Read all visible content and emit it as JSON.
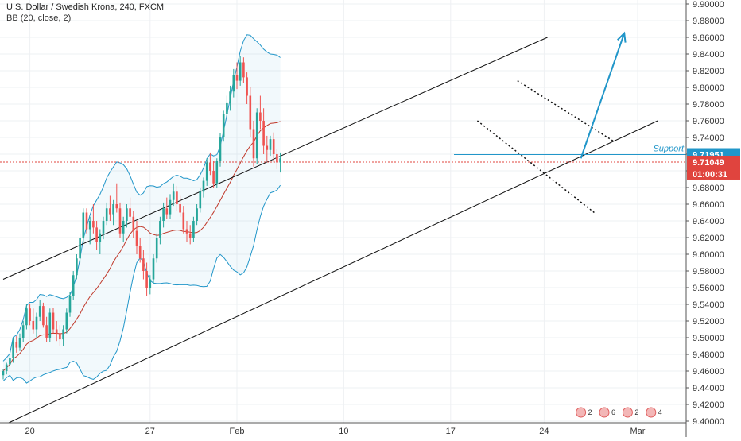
{
  "header": {
    "title": "U.S. Dollar / Swedish Krona, 240, FXCM",
    "indicator": "BB (20, close, 2)"
  },
  "chart_data": {
    "type": "candlestick",
    "ylim": [
      9.4,
      9.9
    ],
    "y_ticks": [
      9.4,
      9.42,
      9.44,
      9.46,
      9.48,
      9.5,
      9.52,
      9.54,
      9.56,
      9.58,
      9.6,
      9.62,
      9.64,
      9.66,
      9.68,
      9.7,
      9.72,
      9.74,
      9.76,
      9.78,
      9.8,
      9.82,
      9.84,
      9.86,
      9.88,
      9.9
    ],
    "x_ticks": [
      {
        "label": "20",
        "pos": 8
      },
      {
        "label": "27",
        "pos": 44
      },
      {
        "label": "Feb",
        "pos": 70
      },
      {
        "label": "10",
        "pos": 102
      },
      {
        "label": "17",
        "pos": 134
      },
      {
        "label": "24",
        "pos": 162
      },
      {
        "label": "Mar",
        "pos": 190
      }
    ],
    "candles": [
      [
        9.455,
        9.462,
        9.45,
        9.46
      ],
      [
        9.46,
        9.47,
        9.456,
        9.468
      ],
      [
        9.468,
        9.48,
        9.462,
        9.476
      ],
      [
        9.476,
        9.5,
        9.47,
        9.495
      ],
      [
        9.495,
        9.502,
        9.482,
        9.488
      ],
      [
        9.488,
        9.505,
        9.484,
        9.5
      ],
      [
        9.5,
        9.52,
        9.495,
        9.515
      ],
      [
        9.515,
        9.54,
        9.51,
        9.535
      ],
      [
        9.535,
        9.54,
        9.515,
        9.52
      ],
      [
        9.52,
        9.535,
        9.505,
        9.51
      ],
      [
        9.51,
        9.53,
        9.5,
        9.525
      ],
      [
        9.525,
        9.545,
        9.52,
        9.538
      ],
      [
        9.538,
        9.542,
        9.512,
        9.515
      ],
      [
        9.515,
        9.525,
        9.495,
        9.5
      ],
      [
        9.5,
        9.535,
        9.495,
        9.53
      ],
      [
        9.53,
        9.536,
        9.505,
        9.51
      ],
      [
        9.51,
        9.52,
        9.496,
        9.505
      ],
      [
        9.505,
        9.515,
        9.49,
        9.498
      ],
      [
        9.498,
        9.515,
        9.49,
        9.51
      ],
      [
        9.51,
        9.535,
        9.505,
        9.53
      ],
      [
        9.53,
        9.555,
        9.525,
        9.55
      ],
      [
        9.55,
        9.58,
        9.545,
        9.575
      ],
      [
        9.575,
        9.6,
        9.57,
        9.595
      ],
      [
        9.595,
        9.625,
        9.59,
        9.62
      ],
      [
        9.62,
        9.655,
        9.615,
        9.65
      ],
      [
        9.65,
        9.655,
        9.625,
        9.63
      ],
      [
        9.63,
        9.645,
        9.612,
        9.64
      ],
      [
        9.64,
        9.66,
        9.625,
        9.632
      ],
      [
        9.632,
        9.64,
        9.605,
        9.615
      ],
      [
        9.615,
        9.63,
        9.6,
        9.625
      ],
      [
        9.625,
        9.645,
        9.618,
        9.64
      ],
      [
        9.64,
        9.662,
        9.635,
        9.655
      ],
      [
        9.655,
        9.67,
        9.64,
        9.648
      ],
      [
        9.648,
        9.665,
        9.635,
        9.66
      ],
      [
        9.66,
        9.685,
        9.65,
        9.655
      ],
      [
        9.655,
        9.662,
        9.62,
        9.625
      ],
      [
        9.625,
        9.645,
        9.615,
        9.64
      ],
      [
        9.64,
        9.66,
        9.632,
        9.655
      ],
      [
        9.655,
        9.668,
        9.64,
        9.645
      ],
      [
        9.645,
        9.652,
        9.62,
        9.628
      ],
      [
        9.628,
        9.64,
        9.6,
        9.61
      ],
      [
        9.61,
        9.62,
        9.59,
        9.595
      ],
      [
        9.595,
        9.605,
        9.57,
        9.58
      ],
      [
        9.58,
        9.59,
        9.55,
        9.56
      ],
      [
        9.56,
        9.575,
        9.552,
        9.57
      ],
      [
        9.57,
        9.6,
        9.565,
        9.595
      ],
      [
        9.595,
        9.625,
        9.59,
        9.62
      ],
      [
        9.62,
        9.645,
        9.612,
        9.64
      ],
      [
        9.64,
        9.662,
        9.632,
        9.655
      ],
      [
        9.655,
        9.668,
        9.642,
        9.648
      ],
      [
        9.648,
        9.672,
        9.642,
        9.665
      ],
      [
        9.665,
        9.685,
        9.658,
        9.675
      ],
      [
        9.675,
        9.682,
        9.652,
        9.66
      ],
      [
        9.66,
        9.67,
        9.645,
        9.65
      ],
      [
        9.65,
        9.658,
        9.625,
        9.63
      ],
      [
        9.63,
        9.64,
        9.615,
        9.625
      ],
      [
        9.625,
        9.635,
        9.612,
        9.62
      ],
      [
        9.62,
        9.645,
        9.615,
        9.64
      ],
      [
        9.64,
        9.66,
        9.635,
        9.655
      ],
      [
        9.655,
        9.68,
        9.65,
        9.675
      ],
      [
        9.675,
        9.692,
        9.668,
        9.688
      ],
      [
        9.688,
        9.715,
        9.682,
        9.71
      ],
      [
        9.71,
        9.722,
        9.695,
        9.7
      ],
      [
        9.7,
        9.712,
        9.68,
        9.685
      ],
      [
        9.685,
        9.715,
        9.68,
        9.712
      ],
      [
        9.712,
        9.745,
        9.705,
        9.74
      ],
      [
        9.74,
        9.772,
        9.735,
        9.768
      ],
      [
        9.768,
        9.79,
        9.76,
        9.782
      ],
      [
        9.782,
        9.802,
        9.772,
        9.795
      ],
      [
        9.795,
        9.822,
        9.788,
        9.815
      ],
      [
        9.815,
        9.83,
        9.798,
        9.808
      ],
      [
        9.808,
        9.838,
        9.802,
        9.83
      ],
      [
        9.83,
        9.836,
        9.805,
        9.812
      ],
      [
        9.812,
        9.818,
        9.78,
        9.79
      ],
      [
        9.79,
        9.8,
        9.74,
        9.75
      ],
      [
        9.75,
        9.76,
        9.705,
        9.715
      ],
      [
        9.715,
        9.775,
        9.708,
        9.77
      ],
      [
        9.77,
        9.79,
        9.75,
        9.76
      ],
      [
        9.76,
        9.775,
        9.72,
        9.73
      ],
      [
        9.73,
        9.742,
        9.712,
        9.725
      ],
      [
        9.725,
        9.742,
        9.718,
        9.738
      ],
      [
        9.738,
        9.746,
        9.71,
        9.72
      ],
      [
        9.72,
        9.726,
        9.702,
        9.71
      ],
      [
        9.71,
        9.722,
        9.698,
        9.715
      ]
    ],
    "support": {
      "label": "Support",
      "value": 9.71951
    },
    "price_labels": [
      {
        "value": 9.71951,
        "text": "9.71951",
        "color": "#2196c9"
      },
      {
        "value": 9.71049,
        "text": "9.71049",
        "color": "#e0443e"
      }
    ],
    "countdown": "01:00:31",
    "channel_upper": [
      [
        0,
        9.57
      ],
      [
        163,
        9.86
      ]
    ],
    "channel_lower": [
      [
        0,
        9.395
      ],
      [
        196,
        9.76
      ]
    ],
    "flag_upper": [
      [
        154,
        9.808
      ],
      [
        183,
        9.735
      ]
    ],
    "flag_lower": [
      [
        142,
        9.76
      ],
      [
        177,
        9.65
      ]
    ],
    "projection": [
      [
        173,
        9.715
      ],
      [
        186,
        9.865
      ]
    ],
    "events": [
      {
        "text": "2",
        "pos": 173
      },
      {
        "text": "6",
        "pos": 180
      },
      {
        "text": "2",
        "pos": 187
      },
      {
        "text": "4",
        "pos": 194
      }
    ]
  }
}
